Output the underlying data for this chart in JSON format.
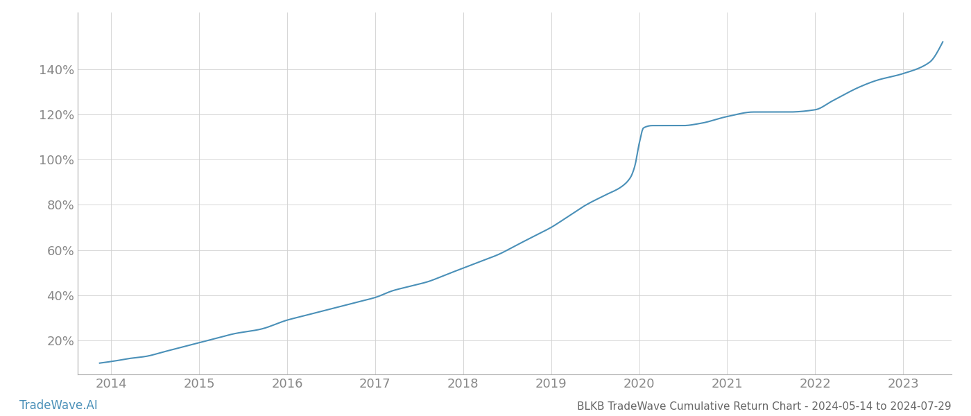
{
  "title": "BLKB TradeWave Cumulative Return Chart - 2024-05-14 to 2024-07-29",
  "watermark": "TradeWave.AI",
  "line_color": "#4a90b8",
  "background_color": "#ffffff",
  "grid_color": "#d0d0d0",
  "axis_label_color": "#888888",
  "title_color": "#666666",
  "watermark_color": "#4a90b8",
  "xlim": [
    2013.62,
    2023.55
  ],
  "ylim": [
    5,
    165
  ],
  "yticks": [
    20,
    40,
    60,
    80,
    100,
    120,
    140
  ],
  "xticks": [
    2014,
    2015,
    2016,
    2017,
    2018,
    2019,
    2020,
    2021,
    2022,
    2023
  ],
  "x_values": [
    2013.87,
    2014.05,
    2014.2,
    2014.4,
    2014.6,
    2014.8,
    2015.0,
    2015.2,
    2015.4,
    2015.7,
    2016.0,
    2016.2,
    2016.4,
    2016.6,
    2016.8,
    2017.0,
    2017.2,
    2017.4,
    2017.6,
    2017.8,
    2018.0,
    2018.2,
    2018.4,
    2018.6,
    2018.8,
    2019.0,
    2019.2,
    2019.4,
    2019.6,
    2019.8,
    2019.9,
    2019.95,
    2020.0,
    2020.05,
    2020.15,
    2020.3,
    2020.5,
    2020.7,
    2021.0,
    2021.3,
    2021.5,
    2021.7,
    2022.0,
    2022.2,
    2022.5,
    2022.7,
    2023.0,
    2023.3,
    2023.45
  ],
  "y_values": [
    10,
    11,
    12,
    13,
    15,
    17,
    19,
    21,
    23,
    25,
    29,
    31,
    33,
    35,
    37,
    39,
    42,
    44,
    46,
    49,
    52,
    55,
    58,
    62,
    66,
    70,
    75,
    80,
    84,
    88,
    92,
    97,
    107,
    114,
    115,
    115,
    115,
    116,
    119,
    121,
    121,
    121,
    122,
    126,
    132,
    135,
    138,
    143,
    152
  ]
}
